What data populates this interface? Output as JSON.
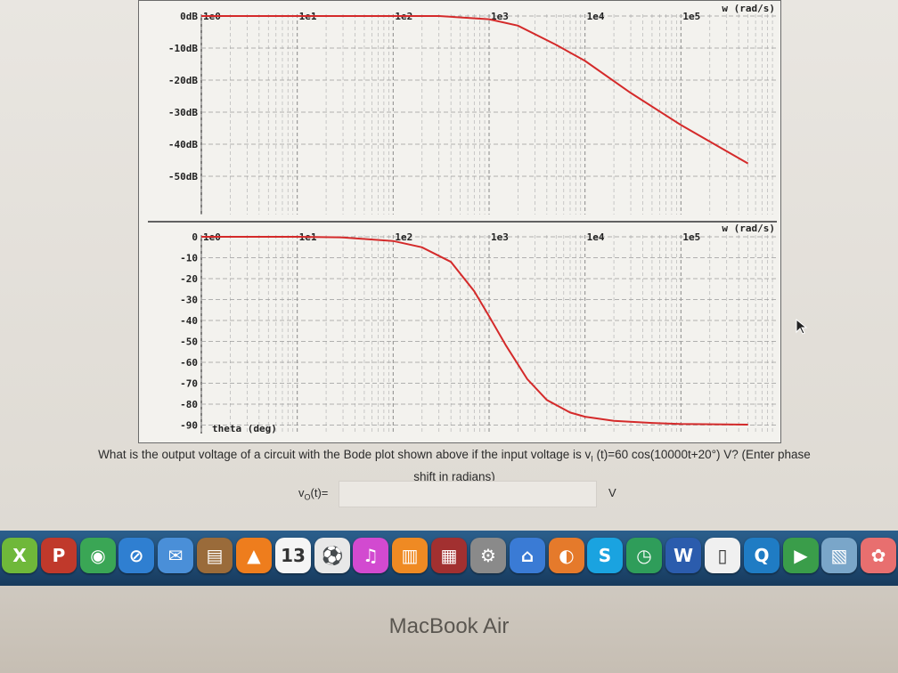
{
  "magnitude_plot": {
    "axis_unit": "w (rad/s)",
    "x_ticks": [
      "1e0",
      "1e1",
      "1e2",
      "1e3",
      "1e4",
      "1e5"
    ],
    "y_ticks": [
      "0dB",
      "-10dB",
      "-20dB",
      "-30dB",
      "-40dB",
      "-50dB"
    ],
    "curve_color": "#d42a2a"
  },
  "phase_plot": {
    "axis_unit": "w (rad/s)",
    "x_ticks": [
      "1e0",
      "1e1",
      "1e2",
      "1e3",
      "1e4",
      "1e5"
    ],
    "y_ticks": [
      "0",
      "-10",
      "-20",
      "-30",
      "-40",
      "-50",
      "-60",
      "-70",
      "-80",
      "-90"
    ],
    "y_label": "theta (deg)",
    "curve_color": "#d42a2a"
  },
  "chart_data": [
    {
      "type": "line",
      "xscale": "log",
      "xlabel": "w (rad/s)",
      "xlim": [
        1,
        1000000
      ],
      "ylim": [
        -55,
        0
      ],
      "grid": true,
      "series": [
        {
          "x": [
            1,
            10,
            100,
            300,
            1000,
            2000,
            5000,
            10000,
            30000,
            100000,
            500000
          ],
          "y": [
            0,
            0,
            0,
            0,
            -1,
            -3,
            -9,
            -14,
            -24,
            -34,
            -46
          ]
        }
      ]
    },
    {
      "type": "line",
      "xscale": "log",
      "xlabel": "w (rad/s)",
      "ylabel": "theta (deg)",
      "xlim": [
        1,
        1000000
      ],
      "ylim": [
        -95,
        0
      ],
      "grid": true,
      "series": [
        {
          "x": [
            1,
            10,
            30,
            100,
            200,
            400,
            700,
            1000,
            1500,
            2500,
            4000,
            7000,
            10000,
            20000,
            50000,
            100000,
            500000
          ],
          "y": [
            0,
            0,
            -0.3,
            -2,
            -5,
            -12,
            -26,
            -38,
            -52,
            -68,
            -78,
            -84,
            -86,
            -88,
            -89,
            -89.5,
            -89.8
          ]
        }
      ]
    }
  ],
  "question": {
    "text_line1": "What is the output voltage of a circuit with the Bode plot shown above if the input voltage is v",
    "input_sub": "I",
    "text_line1b": " (t)=60 cos(10000t+20°) V? (Enter phase",
    "text_line2": "shift in radians)"
  },
  "answer": {
    "label_v": "v",
    "label_sub": "O",
    "label_rest": "(t)=",
    "value": "",
    "unit": "V"
  },
  "dock": {
    "items": [
      {
        "icon": "x-app-icon",
        "glyph": "X",
        "color": "#6fb83a"
      },
      {
        "icon": "p-app-icon",
        "glyph": "P",
        "color": "#c0392b"
      },
      {
        "icon": "chrome-icon",
        "glyph": "◉",
        "color": "#3aa655"
      },
      {
        "icon": "safari-icon",
        "glyph": "⊘",
        "color": "#2f7fd1"
      },
      {
        "icon": "mail-icon",
        "glyph": "✉",
        "color": "#4a8fd8"
      },
      {
        "icon": "notes-icon",
        "glyph": "▤",
        "color": "#9a6b3a"
      },
      {
        "icon": "vlc-icon",
        "glyph": "▲",
        "color": "#ee7d1d"
      },
      {
        "icon": "calendar-icon",
        "glyph": "13",
        "color": "#f5f5f5"
      },
      {
        "icon": "soccer-icon",
        "glyph": "⚽",
        "color": "#e8e8e8"
      },
      {
        "icon": "music-icon",
        "glyph": "♫",
        "color": "#d24ad0"
      },
      {
        "icon": "ibooks-icon",
        "glyph": "▥",
        "color": "#ef8a23"
      },
      {
        "icon": "photo-booth-icon",
        "glyph": "▦",
        "color": "#a23030"
      },
      {
        "icon": "settings-icon",
        "glyph": "⚙",
        "color": "#8a8a8a"
      },
      {
        "icon": "app-store-icon",
        "glyph": "⌂",
        "color": "#3a7bd5"
      },
      {
        "icon": "firefox-icon",
        "glyph": "◐",
        "color": "#e57a2b"
      },
      {
        "icon": "skype-icon",
        "glyph": "S",
        "color": "#1aa3e0"
      },
      {
        "icon": "clock-icon",
        "glyph": "◷",
        "color": "#2f9d5a"
      },
      {
        "icon": "word-icon",
        "glyph": "W",
        "color": "#2b5cad"
      },
      {
        "icon": "textedit-icon",
        "glyph": "▯",
        "color": "#f0f0f0"
      },
      {
        "icon": "quicktime-icon",
        "glyph": "Q",
        "color": "#1f7cc4"
      },
      {
        "icon": "facetime-icon",
        "glyph": "▶",
        "color": "#3a9d4a"
      },
      {
        "icon": "preview-icon",
        "glyph": "▧",
        "color": "#7aa6c9"
      },
      {
        "icon": "photos-icon",
        "glyph": "✿",
        "color": "#e86f6f"
      }
    ]
  },
  "bezel": {
    "brand": "MacBook Air"
  }
}
